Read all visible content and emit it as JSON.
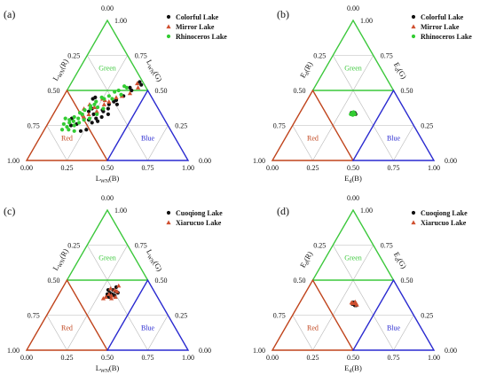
{
  "colors": {
    "green": "#3cc83c",
    "red": "#c0441c",
    "blue": "#2a2ad0",
    "grid": "#b8b8b8",
    "text": "#111111",
    "triangle_marker": "#d05030",
    "green_marker": "#33cc33"
  },
  "chart_data": [
    {
      "panel_label": "(a)",
      "type": "scatter",
      "axis_left": {
        "main": "L",
        "sub": "WN",
        "tail": "(R)"
      },
      "axis_right": {
        "main": "L",
        "sub": "WN",
        "tail": "(G)"
      },
      "axis_bottom": {
        "main": "L",
        "sub": "WN",
        "tail": "(B)"
      },
      "left_ticks": [
        "0.00",
        "0.25",
        "0.50",
        "0.75",
        "1.00"
      ],
      "right_ticks": [
        "1.00",
        "0.75",
        "0.50",
        "0.25",
        "0.00"
      ],
      "bottom_ticks": [
        "0.00",
        "0.25",
        "0.50",
        "0.75",
        "1.00"
      ],
      "region_labels": {
        "green": "Green",
        "red": "Red",
        "blue": "Blue"
      },
      "legend": [
        {
          "name": "Colorful Lake",
          "marker": "circle"
        },
        {
          "name": "Mirror Lake",
          "marker": "triangle"
        },
        {
          "name": "Rhinoceros Lake",
          "marker": "green-circle"
        }
      ],
      "series": [
        {
          "name": "Colorful Lake",
          "marker": "circle",
          "points": [
            [
              0.42,
              0.56
            ],
            [
              0.44,
              0.54
            ],
            [
              0.38,
              0.52
            ],
            [
              0.4,
              0.5
            ],
            [
              0.37,
              0.46
            ],
            [
              0.34,
              0.43
            ],
            [
              0.33,
              0.42
            ],
            [
              0.36,
              0.4
            ],
            [
              0.31,
              0.4
            ],
            [
              0.32,
              0.37
            ],
            [
              0.29,
              0.36
            ],
            [
              0.3,
              0.35
            ],
            [
              0.34,
              0.33
            ],
            [
              0.31,
              0.31
            ],
            [
              0.28,
              0.3
            ],
            [
              0.3,
              0.28
            ],
            [
              0.27,
              0.27
            ],
            [
              0.24,
              0.29
            ],
            [
              0.25,
              0.33
            ],
            [
              0.22,
              0.37
            ],
            [
              0.2,
              0.45
            ],
            [
              0.19,
              0.44
            ],
            [
              0.21,
              0.35
            ],
            [
              0.18,
              0.26
            ],
            [
              0.26,
              0.22
            ],
            [
              0.23,
              0.21
            ],
            [
              0.15,
              0.25
            ],
            [
              0.13,
              0.3
            ]
          ]
        },
        {
          "name": "Mirror Lake",
          "marker": "triangle",
          "points": [
            [
              0.41,
              0.55
            ],
            [
              0.43,
              0.52
            ],
            [
              0.4,
              0.48
            ],
            [
              0.36,
              0.46
            ],
            [
              0.33,
              0.45
            ],
            [
              0.3,
              0.42
            ],
            [
              0.27,
              0.43
            ],
            [
              0.25,
              0.44
            ],
            [
              0.23,
              0.38
            ],
            [
              0.22,
              0.33
            ],
            [
              0.26,
              0.35
            ],
            [
              0.28,
              0.4
            ],
            [
              0.19,
              0.4
            ],
            [
              0.17,
              0.37
            ],
            [
              0.2,
              0.31
            ]
          ]
        },
        {
          "name": "Rhinoceros Lake",
          "marker": "green-circle",
          "points": [
            [
              0.36,
              0.52
            ],
            [
              0.34,
              0.53
            ],
            [
              0.32,
              0.5
            ],
            [
              0.3,
              0.49
            ],
            [
              0.28,
              0.46
            ],
            [
              0.26,
              0.44
            ],
            [
              0.24,
              0.45
            ],
            [
              0.22,
              0.42
            ],
            [
              0.22,
              0.4
            ],
            [
              0.2,
              0.39
            ],
            [
              0.21,
              0.37
            ],
            [
              0.18,
              0.36
            ],
            [
              0.18,
              0.33
            ],
            [
              0.16,
              0.34
            ],
            [
              0.17,
              0.3
            ],
            [
              0.14,
              0.31
            ],
            [
              0.15,
              0.28
            ],
            [
              0.13,
              0.27
            ],
            [
              0.12,
              0.29
            ],
            [
              0.1,
              0.26
            ],
            [
              0.13,
              0.24
            ],
            [
              0.17,
              0.25
            ],
            [
              0.19,
              0.27
            ],
            [
              0.24,
              0.3
            ],
            [
              0.27,
              0.33
            ],
            [
              0.29,
              0.37
            ],
            [
              0.31,
              0.44
            ],
            [
              0.35,
              0.47
            ],
            [
              0.15,
              0.22
            ],
            [
              0.11,
              0.22
            ],
            [
              0.19,
              0.21
            ],
            [
              0.21,
              0.29
            ],
            [
              0.09,
              0.3
            ],
            [
              0.25,
              0.38
            ]
          ]
        }
      ]
    },
    {
      "panel_label": "(b)",
      "type": "scatter",
      "axis_left": {
        "main": "E",
        "sub": "d",
        "tail": "(R)"
      },
      "axis_right": {
        "main": "E",
        "sub": "d",
        "tail": "(G)"
      },
      "axis_bottom": {
        "main": "E",
        "sub": "d",
        "tail": "(B)"
      },
      "left_ticks": [
        "0.00",
        "0.25",
        "0.50",
        "0.75",
        "1.00"
      ],
      "right_ticks": [
        "1.00",
        "0.75",
        "0.50",
        "0.25",
        "0.00"
      ],
      "bottom_ticks": [
        "0.00",
        "0.25",
        "0.50",
        "0.75",
        "1.00"
      ],
      "region_labels": {
        "green": "Green",
        "red": "Red",
        "blue": "Blue"
      },
      "legend": [
        {
          "name": "Colorful Lake",
          "marker": "circle"
        },
        {
          "name": "Mirror Lake",
          "marker": "triangle"
        },
        {
          "name": "Rhinoceros Lake",
          "marker": "green-circle"
        }
      ],
      "series": [
        {
          "name": "Colorful Lake",
          "marker": "circle",
          "points": [
            [
              0.34,
              0.34
            ],
            [
              0.33,
              0.34
            ],
            [
              0.34,
              0.33
            ],
            [
              0.33,
              0.33
            ],
            [
              0.35,
              0.33
            ],
            [
              0.32,
              0.34
            ]
          ]
        },
        {
          "name": "Mirror Lake",
          "marker": "triangle",
          "points": [
            [
              0.34,
              0.33
            ],
            [
              0.33,
              0.335
            ]
          ]
        },
        {
          "name": "Rhinoceros Lake",
          "marker": "green-circle",
          "points": [
            [
              0.335,
              0.335
            ],
            [
              0.34,
              0.335
            ],
            [
              0.325,
              0.34
            ],
            [
              0.33,
              0.345
            ],
            [
              0.345,
              0.33
            ],
            [
              0.335,
              0.325
            ],
            [
              0.32,
              0.33
            ]
          ]
        }
      ]
    },
    {
      "panel_label": "(c)",
      "type": "scatter",
      "axis_left": {
        "main": "L",
        "sub": "WN",
        "tail": "(R)"
      },
      "axis_right": {
        "main": "L",
        "sub": "WN",
        "tail": "(G)"
      },
      "axis_bottom": {
        "main": "L",
        "sub": "WN",
        "tail": "(B)"
      },
      "left_ticks": [
        "0.00",
        "0.25",
        "0.50",
        "0.75",
        "1.00"
      ],
      "right_ticks": [
        "1.00",
        "0.75",
        "0.50",
        "0.25",
        "0.00"
      ],
      "bottom_ticks": [
        "0.00",
        "0.25",
        "0.50",
        "0.75",
        "1.00"
      ],
      "region_labels": {
        "green": "Green",
        "red": "Red",
        "blue": "Blue"
      },
      "legend": [
        {
          "name": "Cuoqiong Lake",
          "marker": "circle"
        },
        {
          "name": "Xiarucuo Lake",
          "marker": "triangle"
        }
      ],
      "series": [
        {
          "name": "Cuoqiong Lake",
          "marker": "circle",
          "points": [
            [
              0.33,
              0.45
            ],
            [
              0.32,
              0.43
            ],
            [
              0.34,
              0.42
            ],
            [
              0.33,
              0.4
            ],
            [
              0.31,
              0.41
            ],
            [
              0.36,
              0.41
            ],
            [
              0.32,
              0.38
            ],
            [
              0.3,
              0.4
            ],
            [
              0.29,
              0.43
            ],
            [
              0.35,
              0.39
            ],
            [
              0.31,
              0.39
            ]
          ]
        },
        {
          "name": "Xiarucuo Lake",
          "marker": "triangle",
          "points": [
            [
              0.34,
              0.46
            ],
            [
              0.3,
              0.44
            ],
            [
              0.33,
              0.43
            ],
            [
              0.35,
              0.42
            ],
            [
              0.31,
              0.4
            ],
            [
              0.33,
              0.39
            ],
            [
              0.29,
              0.37
            ],
            [
              0.34,
              0.37
            ],
            [
              0.36,
              0.38
            ],
            [
              0.3,
              0.38
            ]
          ]
        }
      ]
    },
    {
      "panel_label": "(d)",
      "type": "scatter",
      "axis_left": {
        "main": "E",
        "sub": "d",
        "tail": "(R)"
      },
      "axis_right": {
        "main": "E",
        "sub": "d",
        "tail": "(G)"
      },
      "axis_bottom": {
        "main": "E",
        "sub": "d",
        "tail": "(B)"
      },
      "left_ticks": [
        "0.00",
        "0.25",
        "0.50",
        "0.75",
        "1.00"
      ],
      "right_ticks": [
        "1.00",
        "0.75",
        "0.50",
        "0.25",
        "0.00"
      ],
      "bottom_ticks": [
        "0.00",
        "0.25",
        "0.50",
        "0.75",
        "1.00"
      ],
      "region_labels": {
        "green": "Green",
        "red": "Red",
        "blue": "Blue"
      },
      "legend": [
        {
          "name": "Cuoqiong Lake",
          "marker": "circle"
        },
        {
          "name": "Xiarucuo Lake",
          "marker": "triangle"
        }
      ],
      "series": [
        {
          "name": "Cuoqiong Lake",
          "marker": "circle",
          "points": [
            [
              0.34,
              0.33
            ],
            [
              0.33,
              0.34
            ],
            [
              0.35,
              0.33
            ],
            [
              0.34,
              0.34
            ],
            [
              0.33,
              0.33
            ],
            [
              0.35,
              0.32
            ],
            [
              0.36,
              0.32
            ]
          ]
        },
        {
          "name": "Xiarucuo Lake",
          "marker": "triangle",
          "points": [
            [
              0.33,
              0.335
            ],
            [
              0.34,
              0.345
            ],
            [
              0.35,
              0.335
            ],
            [
              0.36,
              0.325
            ],
            [
              0.32,
              0.34
            ]
          ]
        }
      ]
    }
  ]
}
